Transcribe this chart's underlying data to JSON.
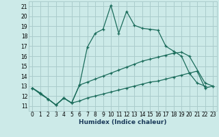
{
  "xlabel": "Humidex (Indice chaleur)",
  "xlim": [
    -0.5,
    23.5
  ],
  "ylim": [
    10.5,
    21.5
  ],
  "xticks": [
    0,
    1,
    2,
    3,
    4,
    5,
    6,
    7,
    8,
    9,
    10,
    11,
    12,
    13,
    14,
    15,
    16,
    17,
    18,
    19,
    20,
    21,
    22,
    23
  ],
  "yticks": [
    11,
    12,
    13,
    14,
    15,
    16,
    17,
    18,
    19,
    20,
    21
  ],
  "bg_color": "#cceae8",
  "grid_color": "#aacccc",
  "line_color": "#1a6b5a",
  "line1_x": [
    0,
    1,
    2,
    3,
    4,
    5,
    6,
    7,
    8,
    9,
    10,
    11,
    12,
    13,
    14,
    15,
    16,
    17,
    18,
    19,
    20,
    21,
    22
  ],
  "line1_y": [
    12.8,
    12.3,
    11.7,
    11.1,
    11.8,
    11.3,
    13.1,
    16.9,
    18.3,
    18.7,
    21.1,
    18.3,
    20.5,
    19.1,
    18.8,
    18.7,
    18.6,
    17.0,
    16.5,
    16.0,
    14.3,
    13.3,
    13.0
  ],
  "line2_x": [
    0,
    1,
    2,
    3,
    4,
    5,
    6,
    7,
    8,
    9,
    10,
    11,
    12,
    13,
    14,
    15,
    16,
    17,
    18,
    19,
    20,
    22,
    23
  ],
  "line2_y": [
    12.8,
    12.3,
    11.7,
    11.1,
    11.8,
    11.3,
    13.1,
    13.4,
    13.7,
    14.0,
    14.3,
    14.6,
    14.9,
    15.2,
    15.5,
    15.7,
    15.9,
    16.1,
    16.3,
    16.4,
    16.0,
    13.3,
    13.0
  ],
  "line3_x": [
    0,
    1,
    2,
    3,
    4,
    5,
    6,
    7,
    8,
    9,
    10,
    11,
    12,
    13,
    14,
    15,
    16,
    17,
    18,
    19,
    20,
    21,
    22,
    23
  ],
  "line3_y": [
    12.8,
    12.2,
    11.7,
    11.1,
    11.8,
    11.3,
    11.5,
    11.8,
    12.0,
    12.2,
    12.4,
    12.6,
    12.8,
    13.0,
    13.2,
    13.4,
    13.5,
    13.7,
    13.9,
    14.1,
    14.3,
    14.5,
    12.8,
    13.0
  ]
}
